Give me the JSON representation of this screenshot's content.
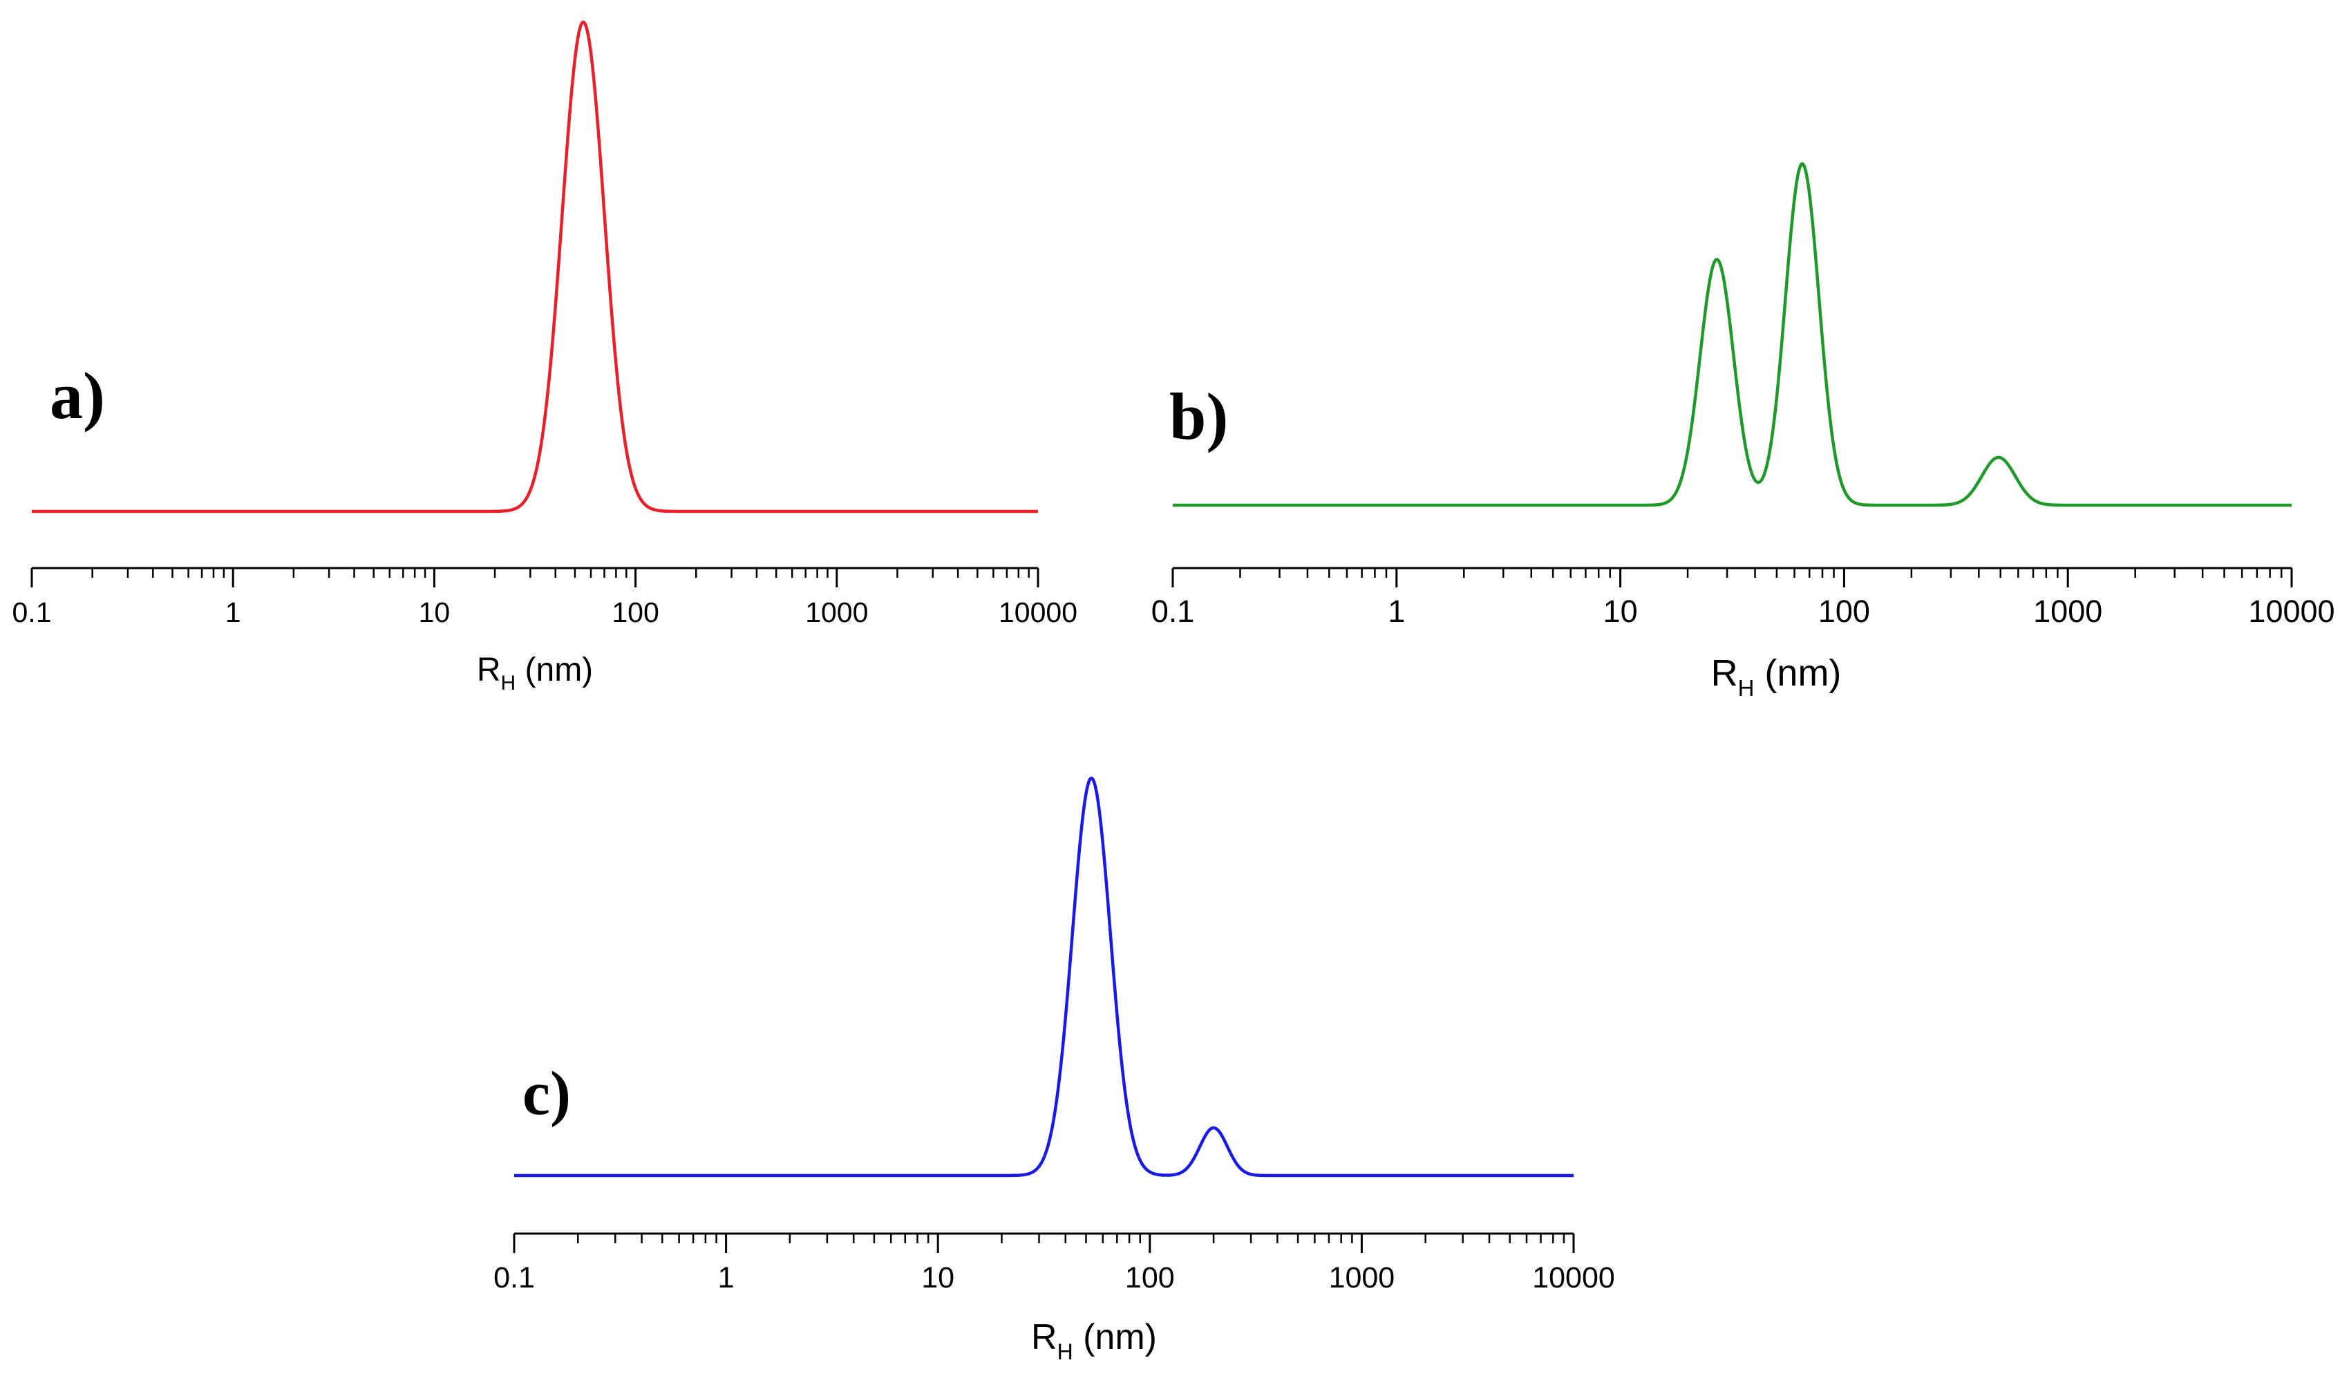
{
  "chart_data": [
    {
      "type": "line",
      "panel_label": "a)",
      "xscale": "log",
      "xlim": [
        0.1,
        10000
      ],
      "x_ticks": [
        "0.1",
        "1",
        "10",
        "100",
        "1000",
        "10000"
      ],
      "xlabel": {
        "main": "R",
        "sub": "H",
        "suffix": " (nm)"
      },
      "ylabel": "",
      "y_axis_shown": false,
      "series": [
        {
          "name": "a",
          "color": "#e8202a",
          "peaks": [
            {
              "center_nm": 55,
              "log_width": 0.105,
              "amplitude": 1.0
            }
          ]
        }
      ]
    },
    {
      "type": "line",
      "panel_label": "b)",
      "xscale": "log",
      "xlim": [
        0.1,
        10000
      ],
      "x_ticks": [
        "0.1",
        "1",
        "10",
        "100",
        "1000",
        "10000"
      ],
      "xlabel": {
        "main": "R",
        "sub": "H",
        "suffix": " (nm)"
      },
      "ylabel": "",
      "y_axis_shown": false,
      "series": [
        {
          "name": "b",
          "color": "#1f9a2a",
          "peaks": [
            {
              "center_nm": 27,
              "log_width": 0.075,
              "amplitude": 0.72
            },
            {
              "center_nm": 65,
              "log_width": 0.075,
              "amplitude": 1.0
            },
            {
              "center_nm": 490,
              "log_width": 0.075,
              "amplitude": 0.14
            }
          ]
        }
      ]
    },
    {
      "type": "line",
      "panel_label": "c)",
      "xscale": "log",
      "xlim": [
        0.1,
        10000
      ],
      "x_ticks": [
        "0.1",
        "1",
        "10",
        "100",
        "1000",
        "10000"
      ],
      "xlabel": {
        "main": "R",
        "sub": "H",
        "suffix": " (nm)"
      },
      "ylabel": "",
      "y_axis_shown": false,
      "series": [
        {
          "name": "c",
          "color": "#1a1ae6",
          "peaks": [
            {
              "center_nm": 53,
              "log_width": 0.09,
              "amplitude": 1.0
            },
            {
              "center_nm": 200,
              "log_width": 0.065,
              "amplitude": 0.12
            }
          ]
        }
      ]
    }
  ]
}
